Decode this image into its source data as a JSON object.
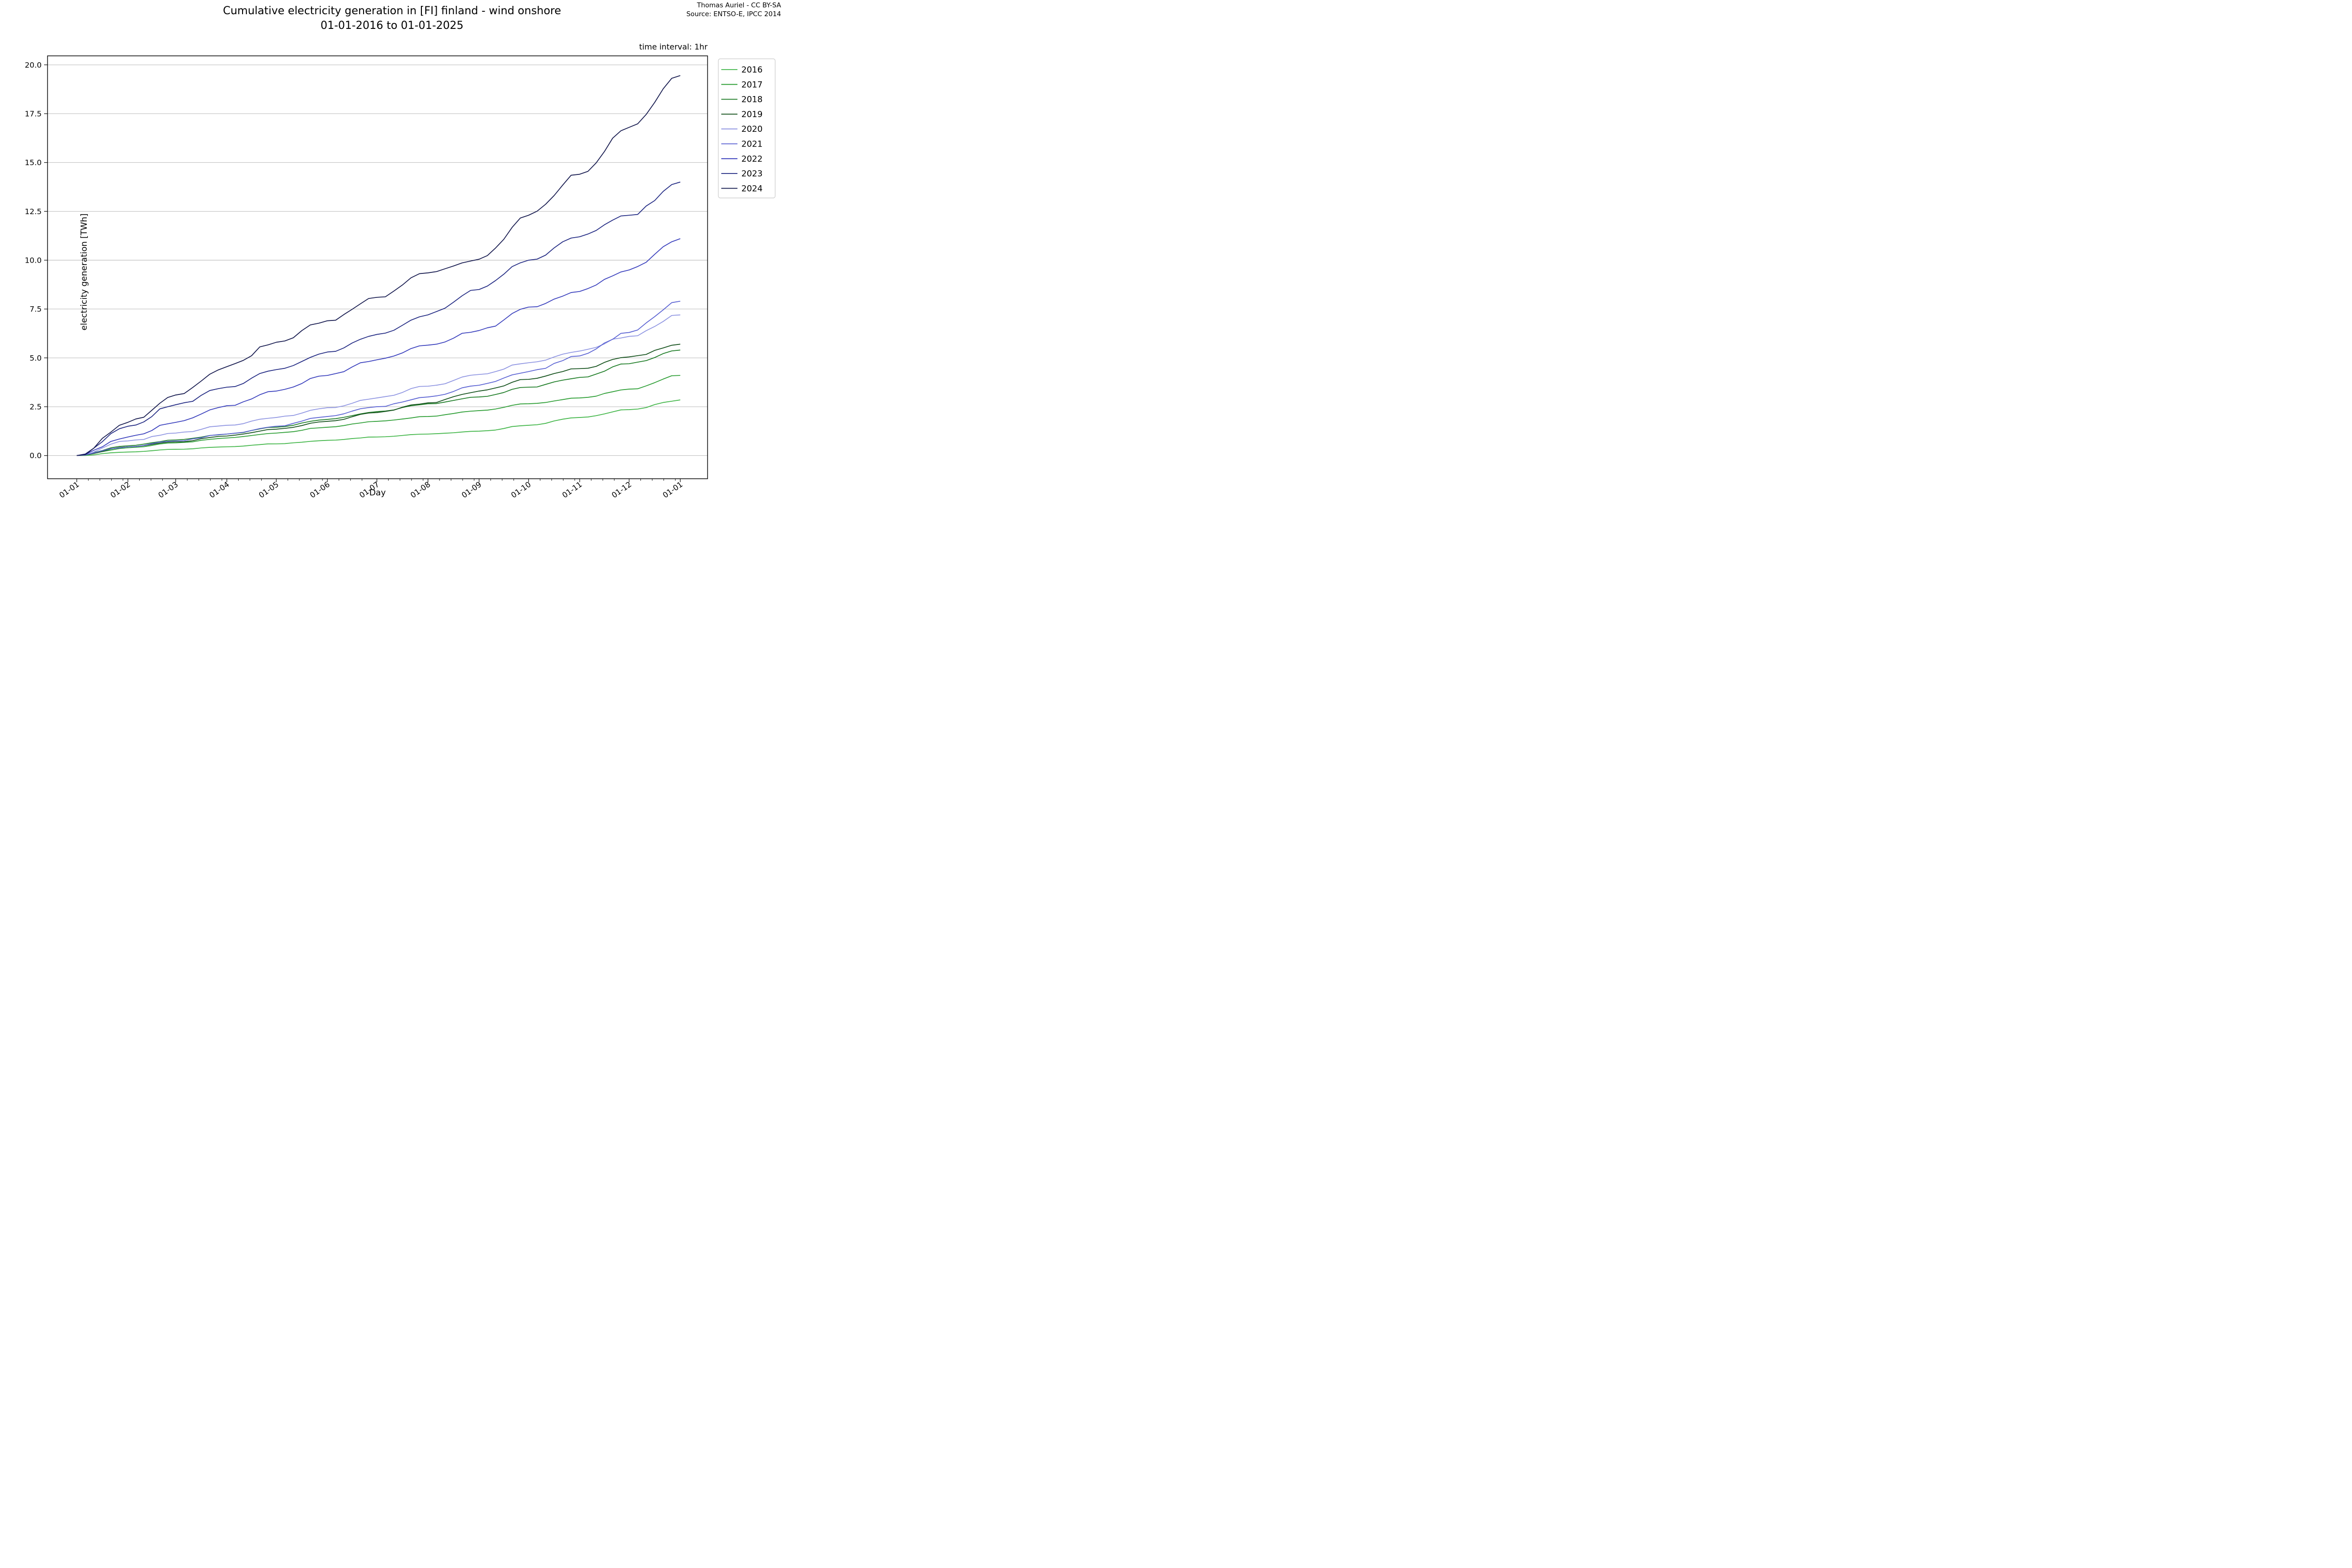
{
  "title": {
    "line1": "Cumulative electricity generation in [FI] finland - wind onshore",
    "line2": "01-01-2016 to 01-01-2025"
  },
  "attribution": {
    "line1": "Thomas Auriel - CC BY-SA",
    "line2": "Source: ENTSO-E, IPCC 2014"
  },
  "annotation": "time interval: 1hr",
  "chart_data": {
    "type": "line",
    "title": "Cumulative electricity generation in [FI] finland - wind onshore 01-01-2016 to 01-01-2025",
    "xlabel": "Day",
    "ylabel": "electricity generation [TWh]",
    "x_tick_labels": [
      "01-01",
      "01-02",
      "01-03",
      "01-04",
      "01-05",
      "01-06",
      "01-07",
      "01-08",
      "01-09",
      "01-10",
      "01-11",
      "01-12",
      "01-01"
    ],
    "x_month_start_days": [
      0,
      31,
      60,
      91,
      121,
      152,
      182,
      213,
      244,
      274,
      305,
      335,
      366
    ],
    "y_tick_labels": [
      "0.0",
      "2.5",
      "5.0",
      "7.5",
      "10.0",
      "12.5",
      "15.0",
      "17.5",
      "20.0"
    ],
    "y_ticks": [
      0,
      2.5,
      5,
      7.5,
      10,
      12.5,
      15,
      17.5,
      20
    ],
    "ylim": [
      -1.0,
      20.46
    ],
    "xlim_days": [
      -18,
      384
    ],
    "grid": "horizontal",
    "legend_position": "outside-right-top",
    "axis_color": "#000000",
    "grid_color": "#b2b2b2",
    "units": "TWh, cumulative per year, sampled at month starts",
    "series": [
      {
        "name": "2016",
        "color": "#42b649",
        "monthly_cumulative_TWh": [
          0,
          0.18,
          0.32,
          0.45,
          0.6,
          0.78,
          0.95,
          1.1,
          1.25,
          1.55,
          1.95,
          2.35,
          2.85
        ]
      },
      {
        "name": "2017",
        "color": "#2d9e35",
        "monthly_cumulative_TWh": [
          0,
          0.4,
          0.65,
          0.9,
          1.15,
          1.45,
          1.75,
          2.0,
          2.3,
          2.65,
          2.95,
          3.4,
          4.1
        ]
      },
      {
        "name": "2018",
        "color": "#1e7d27",
        "monthly_cumulative_TWh": [
          0,
          0.5,
          0.8,
          1.1,
          1.45,
          1.85,
          2.25,
          2.65,
          3.0,
          3.5,
          4.0,
          4.7,
          5.4
        ]
      },
      {
        "name": "2019",
        "color": "#14511c",
        "monthly_cumulative_TWh": [
          0,
          0.45,
          0.7,
          1.0,
          1.35,
          1.75,
          2.2,
          2.7,
          3.3,
          3.9,
          4.45,
          5.05,
          5.7
        ]
      },
      {
        "name": "2020",
        "color": "#9096e2",
        "monthly_cumulative_TWh": [
          0,
          0.75,
          1.15,
          1.55,
          1.95,
          2.45,
          2.95,
          3.55,
          4.15,
          4.75,
          5.35,
          6.1,
          7.2
        ]
      },
      {
        "name": "2021",
        "color": "#5b63d3",
        "monthly_cumulative_TWh": [
          0,
          0.45,
          0.75,
          1.1,
          1.5,
          2.0,
          2.5,
          3.0,
          3.6,
          4.3,
          5.1,
          6.3,
          7.9
        ]
      },
      {
        "name": "2022",
        "color": "#3a40bd",
        "monthly_cumulative_TWh": [
          0,
          0.95,
          1.7,
          2.55,
          3.3,
          4.1,
          4.9,
          5.65,
          6.4,
          7.6,
          8.4,
          9.5,
          11.1
        ]
      },
      {
        "name": "2023",
        "color": "#232b84",
        "monthly_cumulative_TWh": [
          0,
          1.5,
          2.6,
          3.5,
          4.4,
          5.3,
          6.2,
          7.2,
          8.5,
          10.0,
          11.2,
          12.3,
          14.0
        ]
      },
      {
        "name": "2024",
        "color": "#161a4f",
        "monthly_cumulative_TWh": [
          0,
          1.7,
          3.1,
          4.55,
          5.8,
          6.9,
          8.1,
          9.35,
          10.05,
          12.3,
          14.4,
          16.8,
          19.45
        ]
      }
    ]
  }
}
